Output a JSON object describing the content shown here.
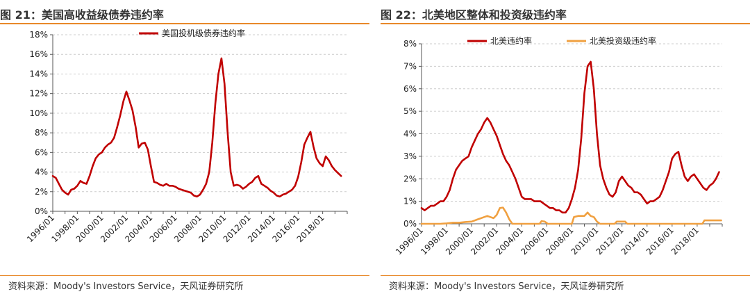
{
  "left_title": "图 21：美国高收益级债券违约率",
  "left_source": "资料来源：Moody's Investors Service，天风证券研究所",
  "right_title": "图 22：北美地区整体和投资级违约率",
  "right_source": "资料来源：Moody's Investors Service，天风证券研究所",
  "colors": {
    "accent": "#E8892A",
    "series_red": "#C00000",
    "series_orange": "#F0A040",
    "grid": "#cccccc"
  },
  "chart_data": [
    {
      "type": "line",
      "title": "图 21：美国高收益级债券违约率",
      "xlabel": "",
      "ylabel": "",
      "ylim": [
        0,
        18
      ],
      "y_ticks": [
        "0%",
        "2%",
        "4%",
        "6%",
        "8%",
        "10%",
        "12%",
        "14%",
        "16%",
        "18%"
      ],
      "x_tick_labels": [
        "1996/01",
        "1998/01",
        "2000/01",
        "2002/01",
        "2004/01",
        "2006/01",
        "2008/01",
        "2010/01",
        "2012/01",
        "2014/01",
        "2016/01",
        "2018/01"
      ],
      "x_range": [
        "1996/01",
        "2019/12"
      ],
      "grid": "horizontal dashed",
      "legend_position": "top-center",
      "series": [
        {
          "name": "美国投机级债券违约率",
          "color": "#C00000",
          "points": [
            [
              "1996/01",
              3.6
            ],
            [
              "1996/04",
              3.4
            ],
            [
              "1996/07",
              2.8
            ],
            [
              "1996/10",
              2.2
            ],
            [
              "1997/01",
              1.9
            ],
            [
              "1997/04",
              1.7
            ],
            [
              "1997/07",
              2.2
            ],
            [
              "1997/10",
              2.3
            ],
            [
              "1998/01",
              2.6
            ],
            [
              "1998/04",
              3.1
            ],
            [
              "1998/07",
              2.9
            ],
            [
              "1998/10",
              2.8
            ],
            [
              "1999/01",
              3.6
            ],
            [
              "1999/04",
              4.6
            ],
            [
              "1999/07",
              5.4
            ],
            [
              "1999/10",
              5.8
            ],
            [
              "2000/01",
              6.0
            ],
            [
              "2000/04",
              6.5
            ],
            [
              "2000/07",
              6.8
            ],
            [
              "2000/10",
              7.0
            ],
            [
              "2001/01",
              7.5
            ],
            [
              "2001/04",
              8.6
            ],
            [
              "2001/07",
              9.8
            ],
            [
              "2001/10",
              11.2
            ],
            [
              "2002/01",
              12.2
            ],
            [
              "2002/04",
              11.3
            ],
            [
              "2002/07",
              10.3
            ],
            [
              "2002/10",
              8.6
            ],
            [
              "2003/01",
              6.5
            ],
            [
              "2003/04",
              6.9
            ],
            [
              "2003/07",
              7.0
            ],
            [
              "2003/10",
              6.3
            ],
            [
              "2004/01",
              4.6
            ],
            [
              "2004/04",
              3.0
            ],
            [
              "2004/07",
              2.9
            ],
            [
              "2004/10",
              2.7
            ],
            [
              "2005/01",
              2.6
            ],
            [
              "2005/04",
              2.8
            ],
            [
              "2005/07",
              2.6
            ],
            [
              "2005/10",
              2.6
            ],
            [
              "2006/01",
              2.5
            ],
            [
              "2006/04",
              2.3
            ],
            [
              "2006/07",
              2.2
            ],
            [
              "2006/10",
              2.1
            ],
            [
              "2007/01",
              2.0
            ],
            [
              "2007/04",
              1.9
            ],
            [
              "2007/07",
              1.6
            ],
            [
              "2007/10",
              1.5
            ],
            [
              "2008/01",
              1.7
            ],
            [
              "2008/04",
              2.2
            ],
            [
              "2008/07",
              2.8
            ],
            [
              "2008/10",
              4.0
            ],
            [
              "2009/01",
              7.0
            ],
            [
              "2009/04",
              11.0
            ],
            [
              "2009/07",
              14.0
            ],
            [
              "2009/10",
              15.6
            ],
            [
              "2010/01",
              13.0
            ],
            [
              "2010/04",
              8.0
            ],
            [
              "2010/07",
              4.0
            ],
            [
              "2010/10",
              2.6
            ],
            [
              "2011/01",
              2.7
            ],
            [
              "2011/04",
              2.6
            ],
            [
              "2011/07",
              2.3
            ],
            [
              "2011/10",
              2.5
            ],
            [
              "2012/01",
              2.8
            ],
            [
              "2012/04",
              3.0
            ],
            [
              "2012/07",
              3.4
            ],
            [
              "2012/10",
              3.6
            ],
            [
              "2013/01",
              2.8
            ],
            [
              "2013/04",
              2.6
            ],
            [
              "2013/07",
              2.4
            ],
            [
              "2013/10",
              2.1
            ],
            [
              "2014/01",
              1.9
            ],
            [
              "2014/04",
              1.6
            ],
            [
              "2014/07",
              1.5
            ],
            [
              "2014/10",
              1.7
            ],
            [
              "2015/01",
              1.8
            ],
            [
              "2015/04",
              2.0
            ],
            [
              "2015/07",
              2.2
            ],
            [
              "2015/10",
              2.6
            ],
            [
              "2016/01",
              3.5
            ],
            [
              "2016/04",
              5.0
            ],
            [
              "2016/07",
              6.8
            ],
            [
              "2016/10",
              7.5
            ],
            [
              "2017/01",
              8.1
            ],
            [
              "2017/04",
              6.6
            ],
            [
              "2017/07",
              5.4
            ],
            [
              "2017/10",
              4.9
            ],
            [
              "2018/01",
              4.6
            ],
            [
              "2018/04",
              5.6
            ],
            [
              "2018/07",
              5.2
            ],
            [
              "2018/10",
              4.6
            ],
            [
              "2019/01",
              4.2
            ],
            [
              "2019/04",
              3.9
            ],
            [
              "2019/07",
              3.6
            ]
          ]
        }
      ]
    },
    {
      "type": "line",
      "title": "图 22：北美地区整体和投资级违约率",
      "xlabel": "",
      "ylabel": "",
      "ylim": [
        0,
        8
      ],
      "y_ticks": [
        "0%",
        "1%",
        "2%",
        "3%",
        "4%",
        "5%",
        "6%",
        "7%",
        "8%"
      ],
      "x_tick_labels": [
        "1996/01",
        "1998/01",
        "2000/01",
        "2002/01",
        "2004/01",
        "2006/01",
        "2008/01",
        "2010/01",
        "2012/01",
        "2014/01",
        "2016/01",
        "2018/01"
      ],
      "x_range": [
        "1996/01",
        "2019/12"
      ],
      "grid": "horizontal dashed",
      "legend_position": "top-center",
      "series": [
        {
          "name": "北美违约率",
          "color": "#C00000",
          "points": [
            [
              "1996/01",
              0.7
            ],
            [
              "1996/04",
              0.6
            ],
            [
              "1996/07",
              0.7
            ],
            [
              "1996/10",
              0.8
            ],
            [
              "1997/01",
              0.8
            ],
            [
              "1997/04",
              0.9
            ],
            [
              "1997/07",
              1.0
            ],
            [
              "1997/10",
              1.0
            ],
            [
              "1998/01",
              1.2
            ],
            [
              "1998/04",
              1.5
            ],
            [
              "1998/07",
              2.0
            ],
            [
              "1998/10",
              2.4
            ],
            [
              "1999/01",
              2.6
            ],
            [
              "1999/04",
              2.8
            ],
            [
              "1999/07",
              2.9
            ],
            [
              "1999/10",
              3.0
            ],
            [
              "2000/01",
              3.4
            ],
            [
              "2000/04",
              3.7
            ],
            [
              "2000/07",
              4.0
            ],
            [
              "2000/10",
              4.2
            ],
            [
              "2001/01",
              4.5
            ],
            [
              "2001/04",
              4.7
            ],
            [
              "2001/07",
              4.5
            ],
            [
              "2001/10",
              4.2
            ],
            [
              "2002/01",
              3.9
            ],
            [
              "2002/04",
              3.5
            ],
            [
              "2002/07",
              3.1
            ],
            [
              "2002/10",
              2.8
            ],
            [
              "2003/01",
              2.6
            ],
            [
              "2003/04",
              2.3
            ],
            [
              "2003/07",
              2.0
            ],
            [
              "2003/10",
              1.6
            ],
            [
              "2004/01",
              1.2
            ],
            [
              "2004/04",
              1.1
            ],
            [
              "2004/07",
              1.1
            ],
            [
              "2004/10",
              1.1
            ],
            [
              "2005/01",
              1.0
            ],
            [
              "2005/04",
              1.0
            ],
            [
              "2005/07",
              1.0
            ],
            [
              "2005/10",
              0.9
            ],
            [
              "2006/01",
              0.8
            ],
            [
              "2006/04",
              0.7
            ],
            [
              "2006/07",
              0.7
            ],
            [
              "2006/10",
              0.6
            ],
            [
              "2007/01",
              0.6
            ],
            [
              "2007/04",
              0.5
            ],
            [
              "2007/07",
              0.5
            ],
            [
              "2007/10",
              0.7
            ],
            [
              "2008/01",
              1.1
            ],
            [
              "2008/04",
              1.6
            ],
            [
              "2008/07",
              2.4
            ],
            [
              "2008/10",
              3.8
            ],
            [
              "2009/01",
              5.8
            ],
            [
              "2009/04",
              7.0
            ],
            [
              "2009/07",
              7.2
            ],
            [
              "2009/10",
              6.0
            ],
            [
              "2010/01",
              4.0
            ],
            [
              "2010/04",
              2.6
            ],
            [
              "2010/07",
              2.0
            ],
            [
              "2010/10",
              1.6
            ],
            [
              "2011/01",
              1.3
            ],
            [
              "2011/04",
              1.2
            ],
            [
              "2011/07",
              1.4
            ],
            [
              "2011/10",
              1.9
            ],
            [
              "2012/01",
              2.1
            ],
            [
              "2012/04",
              1.9
            ],
            [
              "2012/07",
              1.7
            ],
            [
              "2012/10",
              1.6
            ],
            [
              "2013/01",
              1.4
            ],
            [
              "2013/04",
              1.4
            ],
            [
              "2013/07",
              1.3
            ],
            [
              "2013/10",
              1.1
            ],
            [
              "2014/01",
              0.9
            ],
            [
              "2014/04",
              1.0
            ],
            [
              "2014/07",
              1.0
            ],
            [
              "2014/10",
              1.1
            ],
            [
              "2015/01",
              1.2
            ],
            [
              "2015/04",
              1.5
            ],
            [
              "2015/07",
              1.9
            ],
            [
              "2015/10",
              2.3
            ],
            [
              "2016/01",
              2.9
            ],
            [
              "2016/04",
              3.1
            ],
            [
              "2016/07",
              3.2
            ],
            [
              "2016/10",
              2.6
            ],
            [
              "2017/01",
              2.1
            ],
            [
              "2017/04",
              1.9
            ],
            [
              "2017/07",
              2.1
            ],
            [
              "2017/10",
              2.2
            ],
            [
              "2018/01",
              2.0
            ],
            [
              "2018/04",
              1.8
            ],
            [
              "2018/07",
              1.6
            ],
            [
              "2018/10",
              1.5
            ],
            [
              "2019/01",
              1.7
            ],
            [
              "2019/04",
              1.8
            ],
            [
              "2019/07",
              2.0
            ],
            [
              "2019/10",
              2.3
            ]
          ]
        },
        {
          "name": "北美投资级违约率",
          "color": "#F0A040",
          "points": [
            [
              "1996/01",
              0.0
            ],
            [
              "1997/07",
              0.0
            ],
            [
              "1998/01",
              0.02
            ],
            [
              "1998/07",
              0.05
            ],
            [
              "1999/01",
              0.05
            ],
            [
              "1999/07",
              0.08
            ],
            [
              "2000/01",
              0.1
            ],
            [
              "2000/07",
              0.2
            ],
            [
              "2001/01",
              0.3
            ],
            [
              "2001/04",
              0.35
            ],
            [
              "2001/07",
              0.3
            ],
            [
              "2001/10",
              0.25
            ],
            [
              "2002/01",
              0.4
            ],
            [
              "2002/04",
              0.7
            ],
            [
              "2002/07",
              0.72
            ],
            [
              "2002/10",
              0.5
            ],
            [
              "2003/01",
              0.2
            ],
            [
              "2003/04",
              0.0
            ],
            [
              "2005/06",
              0.0
            ],
            [
              "2005/08",
              0.12
            ],
            [
              "2005/11",
              0.1
            ],
            [
              "2006/02",
              0.0
            ],
            [
              "2008/01",
              0.0
            ],
            [
              "2008/03",
              0.3
            ],
            [
              "2008/07",
              0.35
            ],
            [
              "2009/01",
              0.35
            ],
            [
              "2009/04",
              0.5
            ],
            [
              "2009/07",
              0.35
            ],
            [
              "2009/10",
              0.3
            ],
            [
              "2010/01",
              0.1
            ],
            [
              "2010/04",
              0.0
            ],
            [
              "2011/06",
              0.0
            ],
            [
              "2011/08",
              0.1
            ],
            [
              "2012/04",
              0.1
            ],
            [
              "2012/06",
              0.0
            ],
            [
              "2018/06",
              0.0
            ],
            [
              "2018/08",
              0.15
            ],
            [
              "2019/12",
              0.15
            ]
          ]
        }
      ]
    }
  ]
}
